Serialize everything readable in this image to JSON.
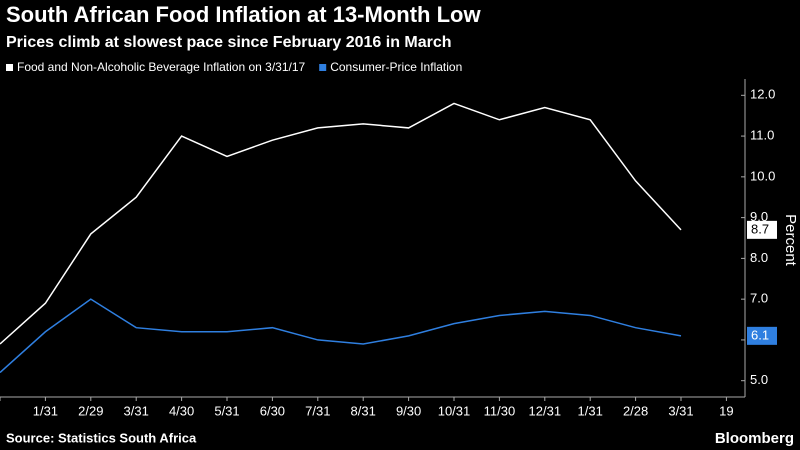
{
  "chart_data": {
    "type": "line",
    "title": "South African Food Inflation at 13-Month Low",
    "subtitle": "Prices climb at slowest pace since February 2016 in March",
    "y_label": "Percent",
    "source": "Source: Statistics South Africa",
    "brand": "Bloomberg",
    "categories": [
      null,
      "1/31",
      "2/29",
      "3/31",
      "4/30",
      "5/31",
      "6/30",
      "7/31",
      "8/31",
      "9/30",
      "10/31",
      "11/30",
      "12/31",
      "1/31",
      "2/28",
      "3/31",
      "19"
    ],
    "series": [
      {
        "name": "Food and Non-Alcoholic Beverage Inflation on 3/31/17",
        "color": "#ffffff",
        "values": [
          5.9,
          6.9,
          8.6,
          9.5,
          11.0,
          10.5,
          10.9,
          11.2,
          11.3,
          11.2,
          11.8,
          11.4,
          11.7,
          11.4,
          9.9,
          8.7,
          null
        ]
      },
      {
        "name": "Consumer-Price Inflation",
        "color": "#2f7fe0",
        "values": [
          5.2,
          6.2,
          7.0,
          6.3,
          6.2,
          6.2,
          6.3,
          6.0,
          5.9,
          6.1,
          6.4,
          6.6,
          6.7,
          6.6,
          6.3,
          6.1,
          null
        ]
      }
    ],
    "ylim": [
      4.6,
      12.4
    ],
    "yticks": [
      {
        "value": 5,
        "label": "5.0"
      },
      {
        "value": 6,
        "label": "6.0"
      },
      {
        "value": 7,
        "label": "7.0"
      },
      {
        "value": 8,
        "label": "8.0"
      },
      {
        "value": 9,
        "label": "9.0"
      },
      {
        "value": 10,
        "label": "10.0"
      },
      {
        "value": 11,
        "label": "11.0"
      },
      {
        "value": 12,
        "label": "12.0"
      }
    ],
    "grid": false
  }
}
